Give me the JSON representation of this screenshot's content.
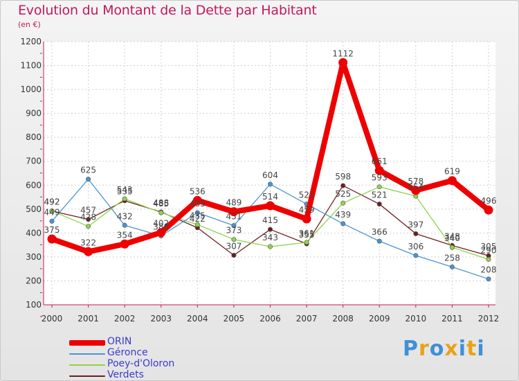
{
  "title": "Evolution du Montant de la Dette par Habitant",
  "subtitle": "(en €)",
  "brand": {
    "letters": [
      "P",
      "r",
      "o",
      "x",
      "i",
      "t",
      "i"
    ],
    "colors": [
      "#3f8fd8",
      "#e8a21a",
      "#3f8fd8",
      "#e8a21a",
      "#3f8fd8",
      "#e8a21a",
      "#3f8fd8"
    ]
  },
  "chart_data": {
    "type": "line",
    "x": [
      "2000",
      "2001",
      "2002",
      "2003",
      "2004",
      "2005",
      "2006",
      "2007",
      "2008",
      "2009",
      "2010",
      "2011",
      "2012"
    ],
    "ylim": [
      100,
      1200
    ],
    "yticks": [
      "100",
      "200",
      "300",
      "400",
      "500",
      "600",
      "700",
      "800",
      "900",
      "1000",
      "1100",
      "1200"
    ],
    "grid": true,
    "legend": "bottom-left",
    "series": [
      {
        "name": "Verdets",
        "color": "#6b1f1f",
        "values": [
          492,
          457,
          535,
          488,
          422,
          307,
          415,
          355,
          598,
          521,
          397,
          348,
          305
        ],
        "labels": [
          "492",
          "457",
          "535",
          "488",
          "422",
          "307",
          "415",
          "355",
          "598",
          "521",
          "397",
          "348",
          "305"
        ]
      },
      {
        "name": "Poey-d'Oloron",
        "color": "#8fd24c",
        "values": [
          492,
          428,
          543,
          485,
          435,
          373,
          343,
          361,
          525,
          593,
          554,
          340,
          290
        ],
        "labels": [
          "492",
          "428",
          "543",
          "485",
          "435",
          "373",
          "343",
          "361",
          "525",
          "593",
          "554",
          "340",
          "290"
        ]
      },
      {
        "name": "Géronce",
        "color": "#4a94d4",
        "values": [
          449,
          625,
          432,
          388,
          485,
          431,
          604,
          521,
          439,
          366,
          306,
          258,
          208
        ],
        "labels": [
          "449",
          "625",
          "432",
          "388",
          "485",
          "431",
          "604",
          "521",
          "439",
          "366",
          "306",
          "258",
          "208"
        ]
      },
      {
        "name": "ORIN",
        "color": "#ee0000",
        "values": [
          375,
          322,
          354,
          402,
          536,
          489,
          514,
          459,
          1112,
          661,
          578,
          619,
          496
        ],
        "labels": [
          "375",
          "322",
          "354",
          "402",
          "536",
          "489",
          "514",
          "459",
          "1112",
          "661",
          "578",
          "619",
          "496"
        ]
      }
    ],
    "legend_order": [
      "ORIN",
      "Géronce",
      "Poey-d'Oloron",
      "Verdets"
    ]
  }
}
